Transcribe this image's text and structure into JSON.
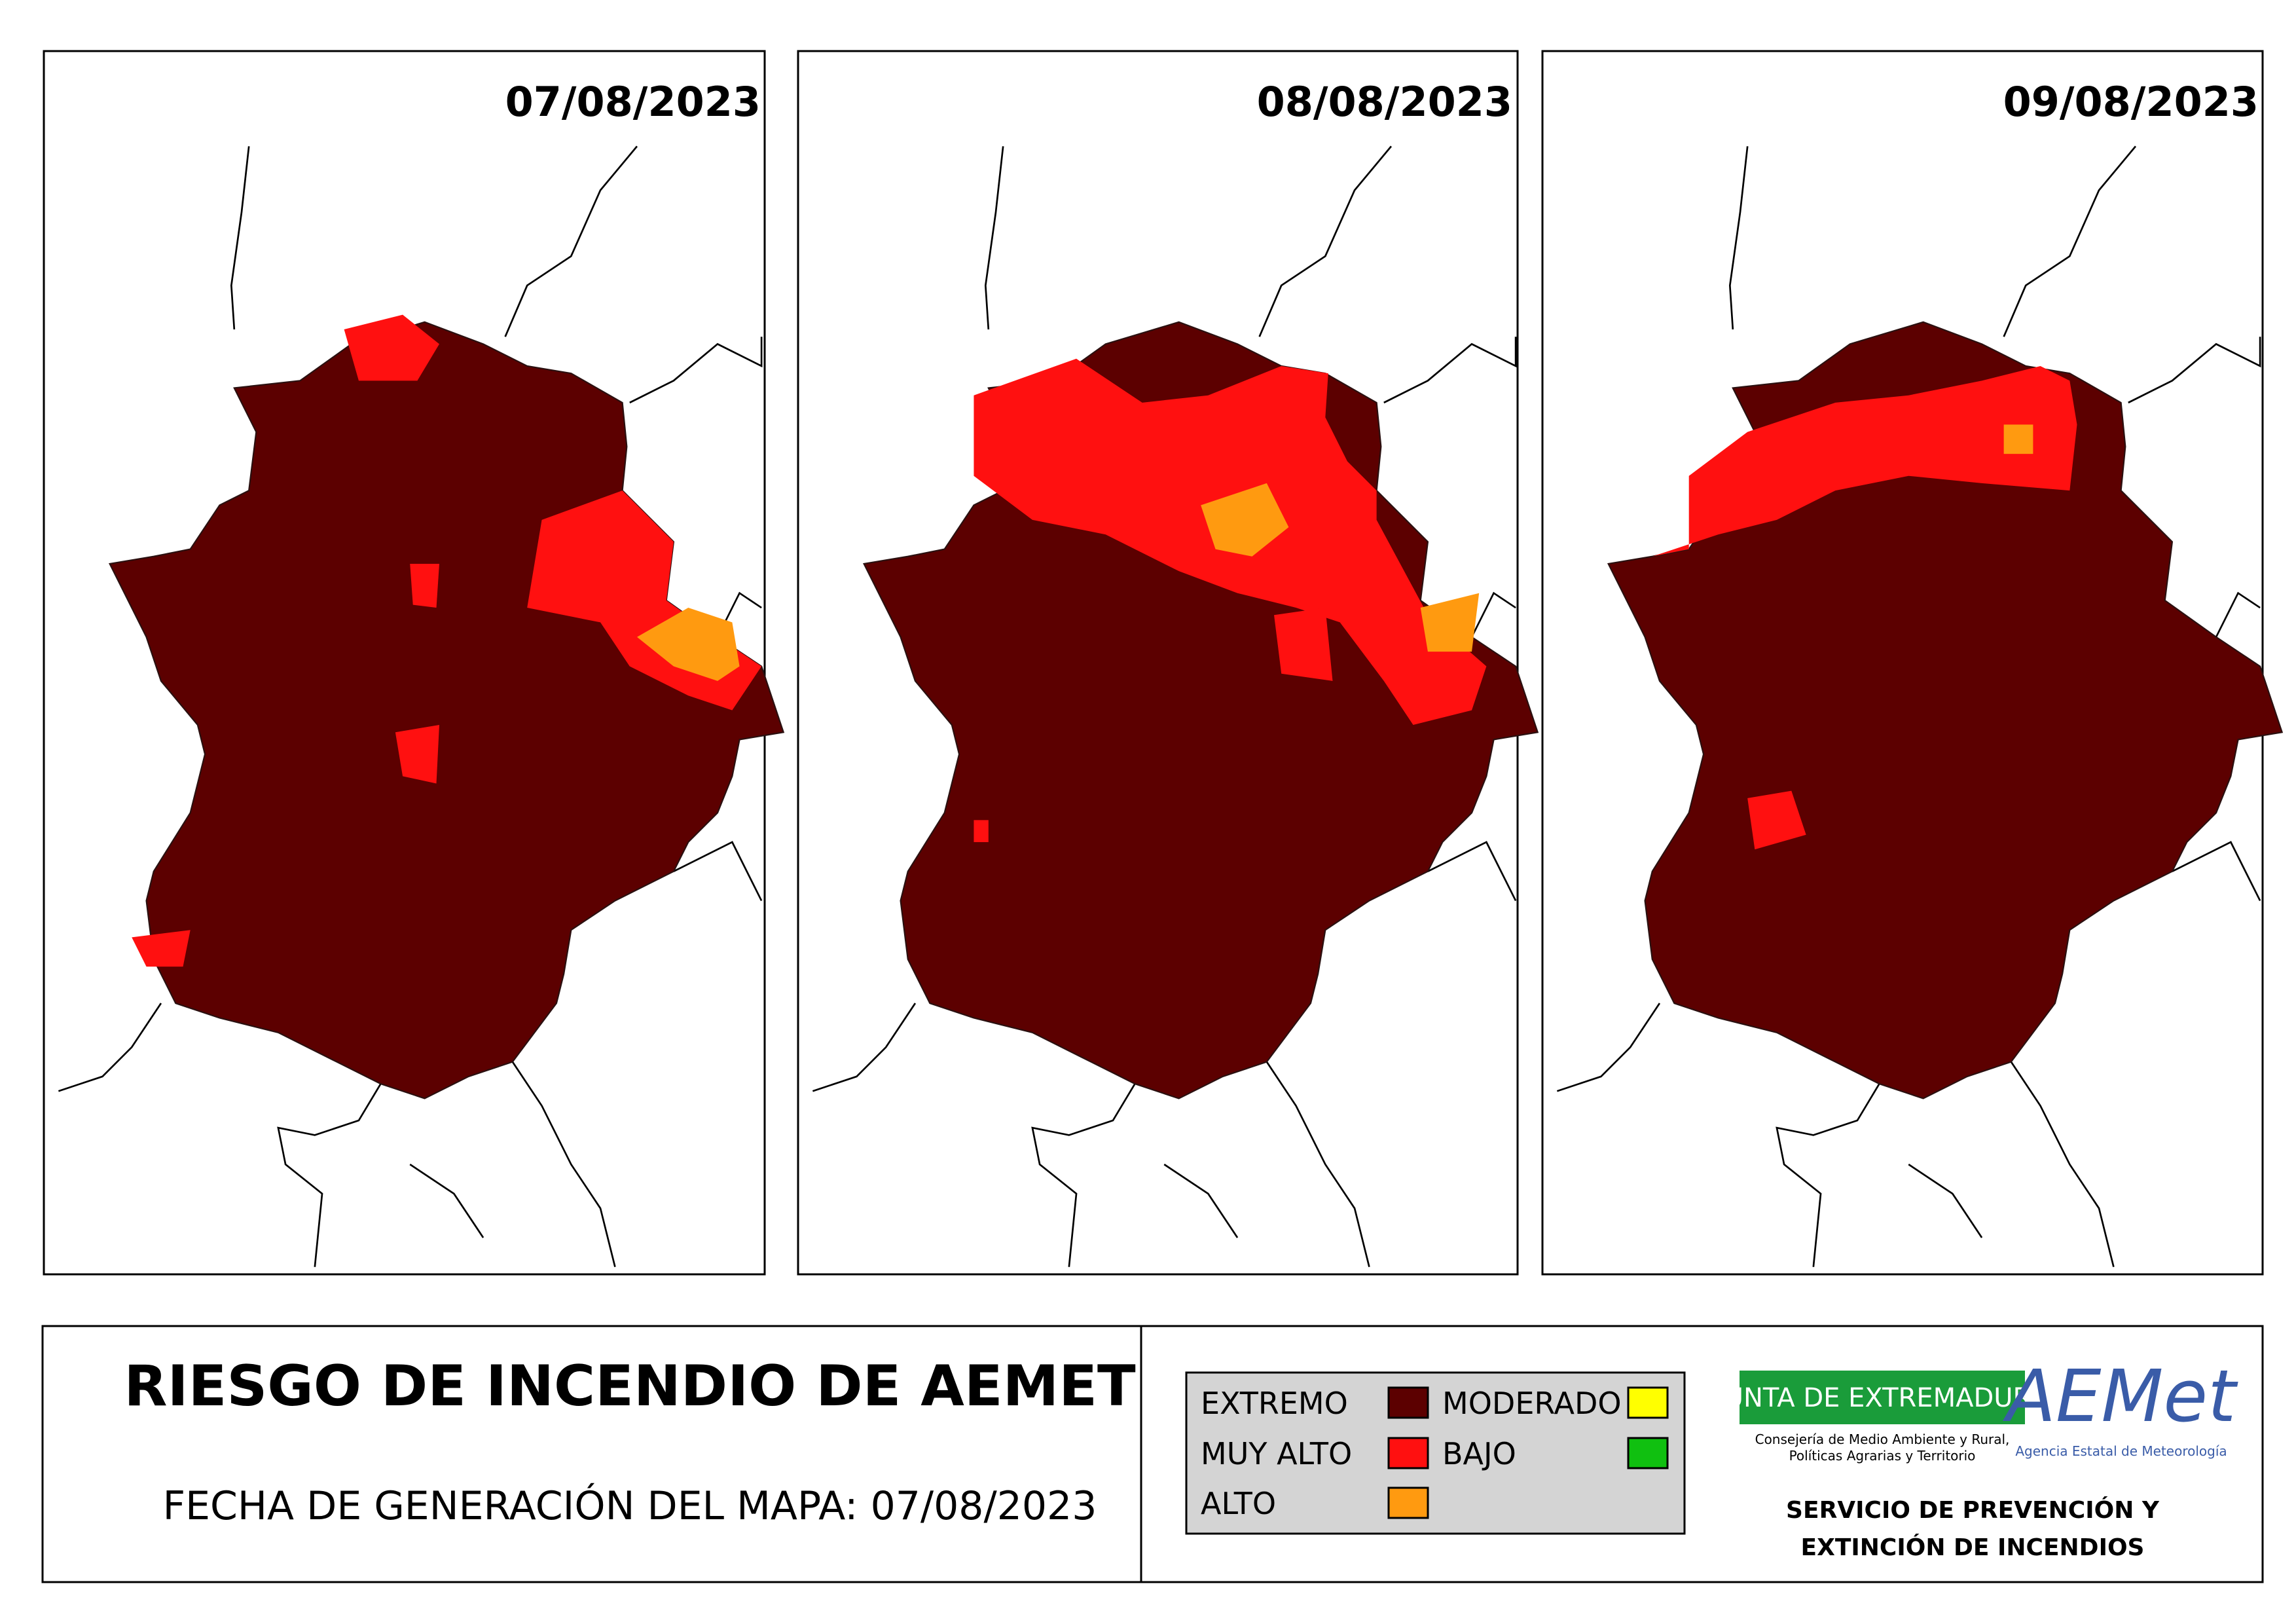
{
  "panels": [
    {
      "date": "07/08/2023"
    },
    {
      "date": "08/08/2023"
    },
    {
      "date": "09/08/2023"
    }
  ],
  "footer": {
    "title": "RIESGO DE INCENDIO DE AEMET",
    "generation": "FECHA DE GENERACIÓN DEL MAPA: 07/08/2023",
    "legend": [
      {
        "label": "EXTREMO",
        "color": "#5c0000"
      },
      {
        "label": "MUY ALTO",
        "color": "#ff1010"
      },
      {
        "label": "ALTO",
        "color": "#ff9a10"
      },
      {
        "label": "MODERADO",
        "color": "#ffff00"
      },
      {
        "label": "BAJO",
        "color": "#10c010"
      }
    ],
    "junta": {
      "name": "JUNTA DE EXTREMADURA",
      "dept_line1": "Consejería de Medio Ambiente y Rural,",
      "dept_line2": "Políticas Agrarias y Territorio"
    },
    "aemet": {
      "logo": "AEMet",
      "name": "Agencia Estatal de Meteorología"
    },
    "service_line1": "SERVICIO DE PREVENCIÓN Y",
    "service_line2": "EXTINCIÓN DE INCENDIOS"
  }
}
